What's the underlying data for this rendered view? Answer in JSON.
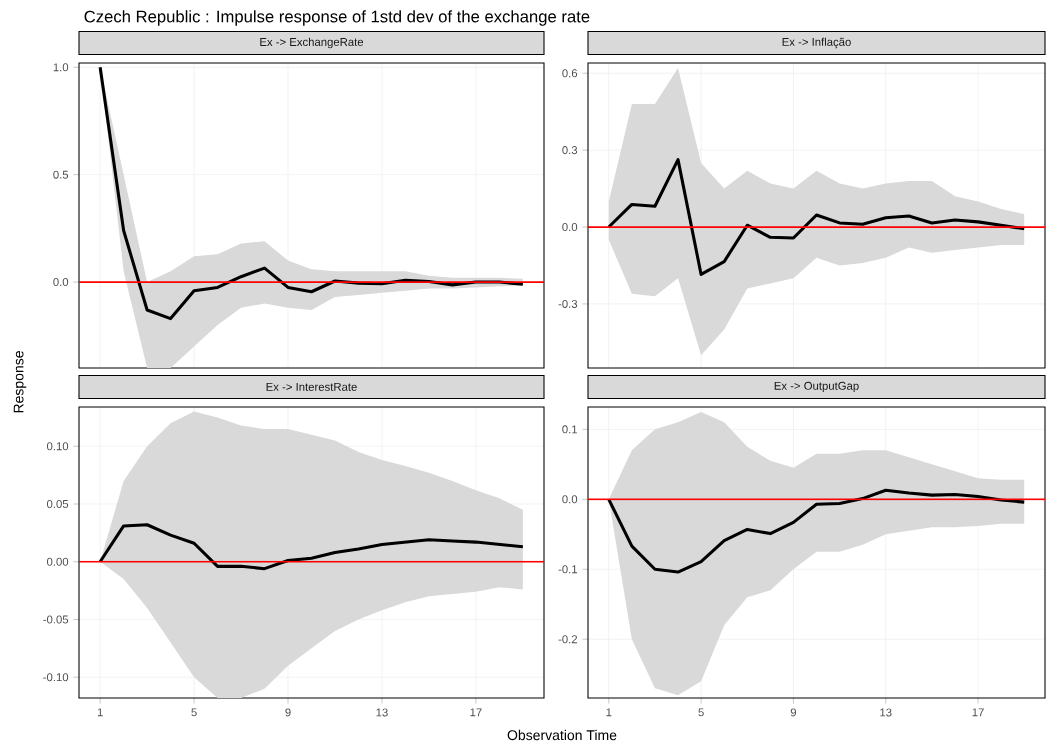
{
  "chart_data": [
    {
      "type": "line",
      "title": "Ex -> ExchangeRate",
      "annotations": [
        "Czech Republic : Impulse response of 1std dev of the exchange rate"
      ],
      "ylabel": "Response",
      "x": [
        1,
        2,
        3,
        4,
        5,
        6,
        7,
        8,
        9,
        10,
        11,
        12,
        13,
        14,
        15,
        16,
        17,
        18,
        19
      ],
      "series": [
        {
          "color": "#000000",
          "values": [
            1.0,
            0.24,
            -0.13,
            -0.17,
            -0.04,
            -0.025,
            0.025,
            0.065,
            -0.025,
            -0.045,
            0.005,
            -0.005,
            -0.008,
            0.008,
            0.003,
            -0.013,
            0.0,
            0.0,
            -0.01
          ],
          "upper": [
            1.0,
            0.5,
            0.0,
            0.05,
            0.12,
            0.13,
            0.18,
            0.19,
            0.1,
            0.06,
            0.05,
            0.05,
            0.05,
            0.05,
            0.03,
            0.02,
            0.02,
            0.02,
            0.015
          ],
          "lower": [
            1.0,
            0.05,
            -0.4,
            -0.4,
            -0.3,
            -0.2,
            -0.12,
            -0.1,
            -0.12,
            -0.13,
            -0.07,
            -0.06,
            -0.05,
            -0.04,
            -0.03,
            -0.03,
            -0.025,
            -0.02,
            -0.015
          ]
        }
      ],
      "ref_lines": [
        {
          "axis": "y",
          "value": 0,
          "color": "#ff0000"
        }
      ],
      "xlim": [
        0.1,
        19.9
      ],
      "ylim": [
        -0.4,
        1.02
      ],
      "xticks": [
        1,
        5,
        9,
        13,
        17
      ],
      "yticks": [
        {
          "value": 0,
          "label": "0.0"
        },
        {
          "value": 0.5,
          "label": "0.5"
        },
        {
          "value": 1,
          "label": "1.0"
        }
      ],
      "grid": true,
      "tick_labels": "y"
    },
    {
      "type": "line",
      "title": "Ex -> Inflação",
      "x": [
        1,
        2,
        3,
        4,
        5,
        6,
        7,
        8,
        9,
        10,
        11,
        12,
        13,
        14,
        15,
        16,
        17,
        18,
        19
      ],
      "series": [
        {
          "color": "#000000",
          "values": [
            0.0,
            0.088,
            0.081,
            0.263,
            -0.185,
            -0.135,
            0.007,
            -0.04,
            -0.043,
            0.047,
            0.016,
            0.011,
            0.036,
            0.043,
            0.016,
            0.027,
            0.02,
            0.007,
            -0.007
          ],
          "upper": [
            0.1,
            0.48,
            0.48,
            0.62,
            0.25,
            0.15,
            0.22,
            0.17,
            0.15,
            0.22,
            0.17,
            0.15,
            0.17,
            0.18,
            0.18,
            0.12,
            0.1,
            0.07,
            0.05
          ],
          "lower": [
            -0.05,
            -0.26,
            -0.27,
            -0.2,
            -0.5,
            -0.4,
            -0.24,
            -0.22,
            -0.2,
            -0.12,
            -0.15,
            -0.14,
            -0.12,
            -0.08,
            -0.1,
            -0.09,
            -0.08,
            -0.07,
            -0.07
          ]
        }
      ],
      "ref_lines": [
        {
          "axis": "y",
          "value": 0,
          "color": "#ff0000"
        }
      ],
      "xlim": [
        0.1,
        19.9
      ],
      "ylim": [
        -0.55,
        0.64
      ],
      "xticks": [
        1,
        5,
        9,
        13,
        17
      ],
      "yticks": [
        {
          "value": -0.3,
          "label": "-0.3"
        },
        {
          "value": 0,
          "label": "0.0"
        },
        {
          "value": 0.3,
          "label": "0.3"
        },
        {
          "value": 0.6,
          "label": "0.6"
        }
      ],
      "grid": true,
      "tick_labels": "y"
    },
    {
      "type": "line",
      "title": "Ex -> InterestRate",
      "xlabel": "Observation Time",
      "x": [
        1,
        2,
        3,
        4,
        5,
        6,
        7,
        8,
        9,
        10,
        11,
        12,
        13,
        14,
        15,
        16,
        17,
        18,
        19
      ],
      "series": [
        {
          "color": "#000000",
          "values": [
            0.0,
            0.031,
            0.032,
            0.023,
            0.016,
            -0.004,
            -0.004,
            -0.006,
            0.001,
            0.003,
            0.008,
            0.011,
            0.015,
            0.017,
            0.019,
            0.018,
            0.017,
            0.015,
            0.013
          ],
          "upper": [
            0.0,
            0.07,
            0.1,
            0.12,
            0.13,
            0.125,
            0.118,
            0.115,
            0.115,
            0.11,
            0.105,
            0.095,
            0.088,
            0.083,
            0.077,
            0.07,
            0.062,
            0.055,
            0.045
          ],
          "lower": [
            0.0,
            -0.015,
            -0.04,
            -0.07,
            -0.1,
            -0.118,
            -0.118,
            -0.11,
            -0.09,
            -0.075,
            -0.06,
            -0.05,
            -0.042,
            -0.035,
            -0.03,
            -0.028,
            -0.026,
            -0.022,
            -0.024
          ]
        }
      ],
      "ref_lines": [
        {
          "axis": "y",
          "value": 0,
          "color": "#ff0000"
        }
      ],
      "xlim": [
        0.1,
        19.9
      ],
      "ylim": [
        -0.118,
        0.134
      ],
      "xticks": [
        1,
        5,
        9,
        13,
        17
      ],
      "yticks": [
        {
          "value": -0.1,
          "label": "-0.10"
        },
        {
          "value": -0.05,
          "label": "-0.05"
        },
        {
          "value": 0,
          "label": "0.00"
        },
        {
          "value": 0.05,
          "label": "0.05"
        },
        {
          "value": 0.1,
          "label": "0.10"
        }
      ],
      "grid": true
    },
    {
      "type": "line",
      "title": "Ex -> OutputGap",
      "x": [
        1,
        2,
        3,
        4,
        5,
        6,
        7,
        8,
        9,
        10,
        11,
        12,
        13,
        14,
        15,
        16,
        17,
        18,
        19
      ],
      "series": [
        {
          "color": "#000000",
          "values": [
            0.0,
            -0.067,
            -0.1,
            -0.104,
            -0.089,
            -0.059,
            -0.043,
            -0.049,
            -0.033,
            -0.007,
            -0.006,
            0.001,
            0.013,
            0.009,
            0.006,
            0.007,
            0.004,
            -0.001,
            -0.004
          ],
          "upper": [
            0.0,
            0.07,
            0.1,
            0.11,
            0.125,
            0.11,
            0.075,
            0.055,
            0.045,
            0.065,
            0.065,
            0.07,
            0.07,
            0.06,
            0.05,
            0.04,
            0.03,
            0.028,
            0.028
          ],
          "lower": [
            0.0,
            -0.2,
            -0.27,
            -0.28,
            -0.26,
            -0.18,
            -0.14,
            -0.13,
            -0.1,
            -0.075,
            -0.075,
            -0.065,
            -0.05,
            -0.045,
            -0.04,
            -0.04,
            -0.038,
            -0.035,
            -0.035
          ]
        }
      ],
      "ref_lines": [
        {
          "axis": "y",
          "value": 0,
          "color": "#ff0000"
        }
      ],
      "xlim": [
        0.1,
        19.9
      ],
      "ylim": [
        -0.284,
        0.132
      ],
      "xticks": [
        1,
        5,
        9,
        13,
        17
      ],
      "yticks": [
        {
          "value": -0.2,
          "label": "-0.2"
        },
        {
          "value": -0.1,
          "label": "-0.1"
        },
        {
          "value": 0,
          "label": "0.0"
        },
        {
          "value": 0.1,
          "label": "0.1"
        }
      ],
      "grid": true
    }
  ]
}
